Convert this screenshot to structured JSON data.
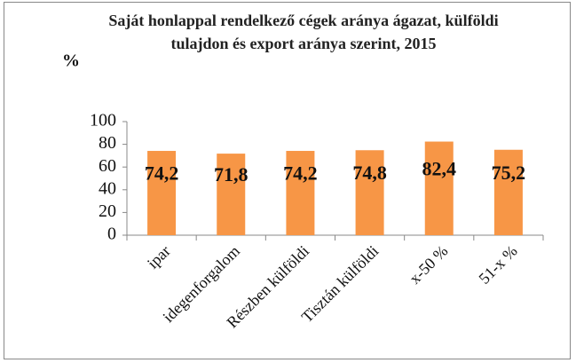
{
  "chart_data": {
    "type": "bar",
    "title": "Saját honlappal rendelkező cégek aránya ágazat, külföldi tulajdon és export aránya szerint, 2015",
    "y_label": "%",
    "categories": [
      "ipar",
      "idegenforgalom",
      "Részben külföldi",
      "Tisztán külföldi",
      "x-50 %",
      "51-x %"
    ],
    "values": [
      74.2,
      71.8,
      74.2,
      74.8,
      82.4,
      75.2
    ],
    "value_labels": [
      "74,2",
      "71,8",
      "74,2",
      "74,8",
      "82,4",
      "75,2"
    ],
    "color": "#f79646",
    "ylim": [
      0,
      100
    ],
    "yticks": [
      0,
      20,
      40,
      60,
      80,
      100
    ],
    "grid": false
  }
}
